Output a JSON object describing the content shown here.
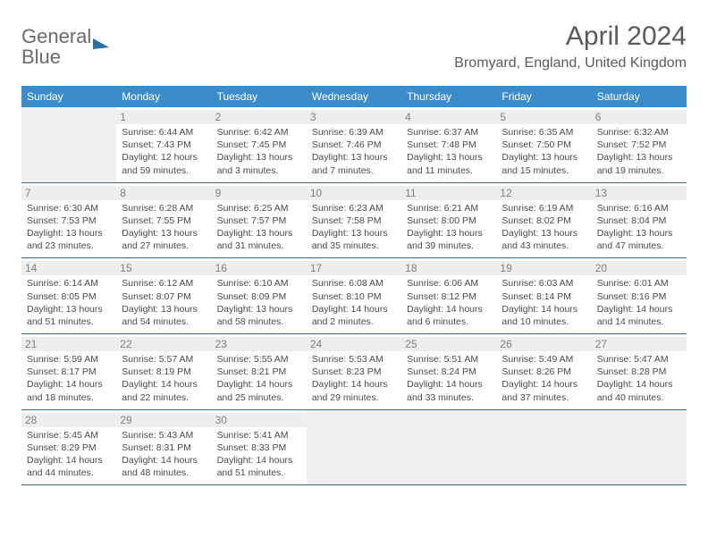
{
  "logo": {
    "part1": "General",
    "part2": "Blue"
  },
  "title": "April 2024",
  "location": "Bromyard, England, United Kingdom",
  "header_bg": "#3b8cc9",
  "dow": [
    "Sunday",
    "Monday",
    "Tuesday",
    "Wednesday",
    "Thursday",
    "Friday",
    "Saturday"
  ],
  "weeks": [
    [
      null,
      {
        "n": "1",
        "r": "Sunrise: 6:44 AM",
        "s": "Sunset: 7:43 PM",
        "d1": "Daylight: 12 hours",
        "d2": "and 59 minutes."
      },
      {
        "n": "2",
        "r": "Sunrise: 6:42 AM",
        "s": "Sunset: 7:45 PM",
        "d1": "Daylight: 13 hours",
        "d2": "and 3 minutes."
      },
      {
        "n": "3",
        "r": "Sunrise: 6:39 AM",
        "s": "Sunset: 7:46 PM",
        "d1": "Daylight: 13 hours",
        "d2": "and 7 minutes."
      },
      {
        "n": "4",
        "r": "Sunrise: 6:37 AM",
        "s": "Sunset: 7:48 PM",
        "d1": "Daylight: 13 hours",
        "d2": "and 11 minutes."
      },
      {
        "n": "5",
        "r": "Sunrise: 6:35 AM",
        "s": "Sunset: 7:50 PM",
        "d1": "Daylight: 13 hours",
        "d2": "and 15 minutes."
      },
      {
        "n": "6",
        "r": "Sunrise: 6:32 AM",
        "s": "Sunset: 7:52 PM",
        "d1": "Daylight: 13 hours",
        "d2": "and 19 minutes."
      }
    ],
    [
      {
        "n": "7",
        "r": "Sunrise: 6:30 AM",
        "s": "Sunset: 7:53 PM",
        "d1": "Daylight: 13 hours",
        "d2": "and 23 minutes."
      },
      {
        "n": "8",
        "r": "Sunrise: 6:28 AM",
        "s": "Sunset: 7:55 PM",
        "d1": "Daylight: 13 hours",
        "d2": "and 27 minutes."
      },
      {
        "n": "9",
        "r": "Sunrise: 6:25 AM",
        "s": "Sunset: 7:57 PM",
        "d1": "Daylight: 13 hours",
        "d2": "and 31 minutes."
      },
      {
        "n": "10",
        "r": "Sunrise: 6:23 AM",
        "s": "Sunset: 7:58 PM",
        "d1": "Daylight: 13 hours",
        "d2": "and 35 minutes."
      },
      {
        "n": "11",
        "r": "Sunrise: 6:21 AM",
        "s": "Sunset: 8:00 PM",
        "d1": "Daylight: 13 hours",
        "d2": "and 39 minutes."
      },
      {
        "n": "12",
        "r": "Sunrise: 6:19 AM",
        "s": "Sunset: 8:02 PM",
        "d1": "Daylight: 13 hours",
        "d2": "and 43 minutes."
      },
      {
        "n": "13",
        "r": "Sunrise: 6:16 AM",
        "s": "Sunset: 8:04 PM",
        "d1": "Daylight: 13 hours",
        "d2": "and 47 minutes."
      }
    ],
    [
      {
        "n": "14",
        "r": "Sunrise: 6:14 AM",
        "s": "Sunset: 8:05 PM",
        "d1": "Daylight: 13 hours",
        "d2": "and 51 minutes."
      },
      {
        "n": "15",
        "r": "Sunrise: 6:12 AM",
        "s": "Sunset: 8:07 PM",
        "d1": "Daylight: 13 hours",
        "d2": "and 54 minutes."
      },
      {
        "n": "16",
        "r": "Sunrise: 6:10 AM",
        "s": "Sunset: 8:09 PM",
        "d1": "Daylight: 13 hours",
        "d2": "and 58 minutes."
      },
      {
        "n": "17",
        "r": "Sunrise: 6:08 AM",
        "s": "Sunset: 8:10 PM",
        "d1": "Daylight: 14 hours",
        "d2": "and 2 minutes."
      },
      {
        "n": "18",
        "r": "Sunrise: 6:06 AM",
        "s": "Sunset: 8:12 PM",
        "d1": "Daylight: 14 hours",
        "d2": "and 6 minutes."
      },
      {
        "n": "19",
        "r": "Sunrise: 6:03 AM",
        "s": "Sunset: 8:14 PM",
        "d1": "Daylight: 14 hours",
        "d2": "and 10 minutes."
      },
      {
        "n": "20",
        "r": "Sunrise: 6:01 AM",
        "s": "Sunset: 8:16 PM",
        "d1": "Daylight: 14 hours",
        "d2": "and 14 minutes."
      }
    ],
    [
      {
        "n": "21",
        "r": "Sunrise: 5:59 AM",
        "s": "Sunset: 8:17 PM",
        "d1": "Daylight: 14 hours",
        "d2": "and 18 minutes."
      },
      {
        "n": "22",
        "r": "Sunrise: 5:57 AM",
        "s": "Sunset: 8:19 PM",
        "d1": "Daylight: 14 hours",
        "d2": "and 22 minutes."
      },
      {
        "n": "23",
        "r": "Sunrise: 5:55 AM",
        "s": "Sunset: 8:21 PM",
        "d1": "Daylight: 14 hours",
        "d2": "and 25 minutes."
      },
      {
        "n": "24",
        "r": "Sunrise: 5:53 AM",
        "s": "Sunset: 8:23 PM",
        "d1": "Daylight: 14 hours",
        "d2": "and 29 minutes."
      },
      {
        "n": "25",
        "r": "Sunrise: 5:51 AM",
        "s": "Sunset: 8:24 PM",
        "d1": "Daylight: 14 hours",
        "d2": "and 33 minutes."
      },
      {
        "n": "26",
        "r": "Sunrise: 5:49 AM",
        "s": "Sunset: 8:26 PM",
        "d1": "Daylight: 14 hours",
        "d2": "and 37 minutes."
      },
      {
        "n": "27",
        "r": "Sunrise: 5:47 AM",
        "s": "Sunset: 8:28 PM",
        "d1": "Daylight: 14 hours",
        "d2": "and 40 minutes."
      }
    ],
    [
      {
        "n": "28",
        "r": "Sunrise: 5:45 AM",
        "s": "Sunset: 8:29 PM",
        "d1": "Daylight: 14 hours",
        "d2": "and 44 minutes."
      },
      {
        "n": "29",
        "r": "Sunrise: 5:43 AM",
        "s": "Sunset: 8:31 PM",
        "d1": "Daylight: 14 hours",
        "d2": "and 48 minutes."
      },
      {
        "n": "30",
        "r": "Sunrise: 5:41 AM",
        "s": "Sunset: 8:33 PM",
        "d1": "Daylight: 14 hours",
        "d2": "and 51 minutes."
      },
      null,
      null,
      null,
      null
    ]
  ]
}
